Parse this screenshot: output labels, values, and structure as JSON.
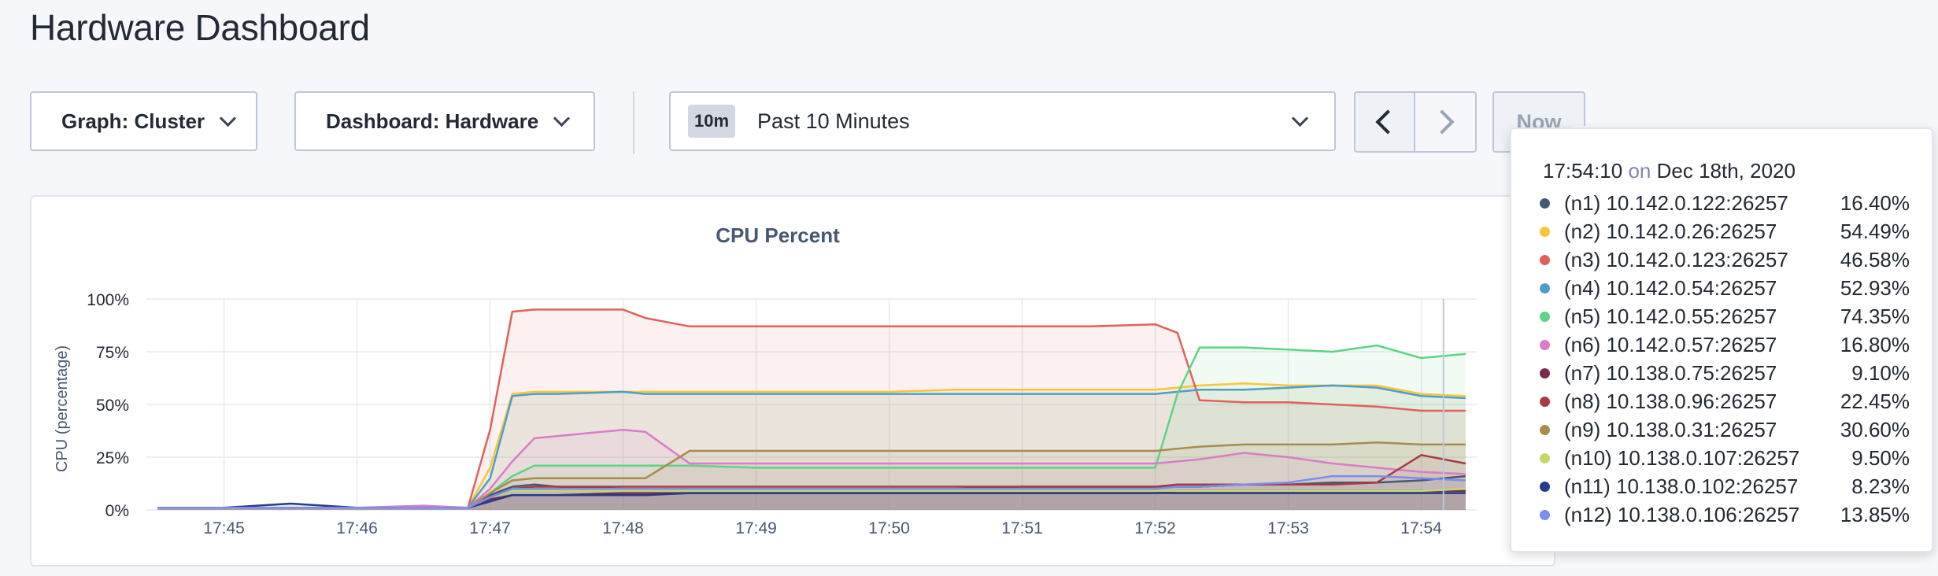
{
  "page": {
    "title": "Hardware Dashboard"
  },
  "toolbar": {
    "graph_label": "Graph: Cluster",
    "dashboard_label": "Dashboard: Hardware",
    "time_badge": "10m",
    "time_label": "Past 10 Minutes",
    "now_label": "Now"
  },
  "tooltip": {
    "time": "17:54:10",
    "on": "on",
    "date": "Dec 18th, 2020",
    "rows": [
      {
        "name": "(n1) 10.142.0.122:26257",
        "value": "16.40%",
        "color": "#475872"
      },
      {
        "name": "(n2) 10.142.0.26:26257",
        "value": "54.49%",
        "color": "#f5c73e"
      },
      {
        "name": "(n3) 10.142.0.123:26257",
        "value": "46.58%",
        "color": "#e0615a"
      },
      {
        "name": "(n4) 10.142.0.54:26257",
        "value": "52.93%",
        "color": "#4f9ec7"
      },
      {
        "name": "(n5) 10.142.0.55:26257",
        "value": "74.35%",
        "color": "#5fd385"
      },
      {
        "name": "(n6) 10.142.0.57:26257",
        "value": "16.80%",
        "color": "#d97cc9"
      },
      {
        "name": "(n7) 10.138.0.75:26257",
        "value": "9.10%",
        "color": "#7a2a4f"
      },
      {
        "name": "(n8) 10.138.0.96:26257",
        "value": "22.45%",
        "color": "#a83a46"
      },
      {
        "name": "(n9) 10.138.0.31:26257",
        "value": "30.60%",
        "color": "#a88c4e"
      },
      {
        "name": "(n10) 10.138.0.107:26257",
        "value": "9.50%",
        "color": "#c3d86a"
      },
      {
        "name": "(n11) 10.138.0.102:26257",
        "value": "8.23%",
        "color": "#273a8c"
      },
      {
        "name": "(n12) 10.138.0.106:26257",
        "value": "13.85%",
        "color": "#7b8ded"
      }
    ]
  },
  "chart_data": {
    "type": "line",
    "title": "CPU Percent",
    "ylabel": "CPU (percentage)",
    "xlabel": "",
    "x_ticks": [
      "17:45",
      "17:46",
      "17:47",
      "17:48",
      "17:49",
      "17:50",
      "17:51",
      "17:52",
      "17:53",
      "17:54"
    ],
    "y_ticks": [
      "0%",
      "25%",
      "50%",
      "75%",
      "100%"
    ],
    "xlim": [
      "17:44:25",
      "17:54:25"
    ],
    "ylim": [
      0,
      100
    ],
    "grid": true,
    "x": [
      "17:44:30",
      "17:45:00",
      "17:45:30",
      "17:46:00",
      "17:46:30",
      "17:46:50",
      "17:47:00",
      "17:47:10",
      "17:47:20",
      "17:47:30",
      "17:48:00",
      "17:48:10",
      "17:48:30",
      "17:49:00",
      "17:49:30",
      "17:50:00",
      "17:50:30",
      "17:51:00",
      "17:51:30",
      "17:52:00",
      "17:52:10",
      "17:52:20",
      "17:52:40",
      "17:53:00",
      "17:53:20",
      "17:53:40",
      "17:54:00",
      "17:54:20"
    ],
    "series": [
      {
        "name": "(n1) 10.142.0.122:26257",
        "color": "#475872",
        "values": [
          1,
          1,
          1,
          1,
          1,
          1,
          7,
          11,
          12,
          11,
          10,
          10,
          10,
          10,
          10,
          10,
          10,
          11,
          11,
          11,
          11,
          11,
          12,
          12,
          13,
          13,
          14,
          16
        ]
      },
      {
        "name": "(n2) 10.142.0.26:26257",
        "color": "#f5c73e",
        "values": [
          1,
          1,
          1,
          1,
          1,
          1,
          20,
          55,
          56,
          56,
          56,
          56,
          56,
          56,
          56,
          56,
          57,
          57,
          57,
          57,
          58,
          59,
          60,
          59,
          59,
          59,
          55,
          54
        ]
      },
      {
        "name": "(n3) 10.142.0.123:26257",
        "color": "#e0615a",
        "values": [
          1,
          1,
          1,
          1,
          1,
          1,
          38,
          94,
          95,
          95,
          95,
          91,
          87,
          87,
          87,
          87,
          87,
          87,
          87,
          88,
          84,
          52,
          51,
          51,
          50,
          49,
          47,
          47
        ]
      },
      {
        "name": "(n4) 10.142.0.54:26257",
        "color": "#4f9ec7",
        "values": [
          1,
          1,
          1,
          1,
          1,
          1,
          15,
          54,
          55,
          55,
          56,
          55,
          55,
          55,
          55,
          55,
          55,
          55,
          55,
          55,
          56,
          57,
          57,
          58,
          59,
          58,
          54,
          53
        ]
      },
      {
        "name": "(n5) 10.142.0.55:26257",
        "color": "#5fd385",
        "values": [
          1,
          1,
          1,
          1,
          1,
          1,
          8,
          16,
          21,
          21,
          21,
          21,
          21,
          20,
          20,
          20,
          20,
          20,
          20,
          20,
          55,
          77,
          77,
          76,
          75,
          78,
          72,
          74
        ]
      },
      {
        "name": "(n6) 10.142.0.57:26257",
        "color": "#d97cc9",
        "values": [
          1,
          1,
          1,
          1,
          2,
          1,
          10,
          23,
          34,
          35,
          38,
          37,
          22,
          22,
          22,
          22,
          22,
          22,
          22,
          22,
          23,
          24,
          27,
          25,
          22,
          20,
          18,
          17
        ]
      },
      {
        "name": "(n7) 10.138.0.75:26257",
        "color": "#7a2a4f",
        "values": [
          1,
          1,
          1,
          1,
          1,
          1,
          5,
          7,
          7,
          7,
          8,
          8,
          8,
          8,
          8,
          8,
          8,
          8,
          8,
          8,
          9,
          9,
          9,
          9,
          9,
          9,
          9,
          9
        ]
      },
      {
        "name": "(n8) 10.138.0.96:26257",
        "color": "#a83a46",
        "values": [
          1,
          1,
          1,
          1,
          1,
          1,
          6,
          10,
          11,
          11,
          11,
          11,
          11,
          11,
          11,
          11,
          11,
          11,
          11,
          11,
          12,
          12,
          12,
          12,
          12,
          13,
          26,
          22
        ]
      },
      {
        "name": "(n9) 10.138.0.31:26257",
        "color": "#a88c4e",
        "values": [
          1,
          1,
          1,
          1,
          1,
          1,
          8,
          14,
          15,
          15,
          15,
          15,
          28,
          28,
          28,
          28,
          28,
          28,
          28,
          28,
          29,
          30,
          31,
          31,
          31,
          32,
          31,
          31
        ]
      },
      {
        "name": "(n10) 10.138.0.107:26257",
        "color": "#c3d86a",
        "values": [
          1,
          1,
          1,
          1,
          1,
          1,
          6,
          9,
          9,
          9,
          9,
          9,
          9,
          9,
          9,
          9,
          9,
          9,
          9,
          9,
          9,
          9,
          9,
          9,
          9,
          9,
          9,
          10
        ]
      },
      {
        "name": "(n11) 10.138.0.102:26257",
        "color": "#273a8c",
        "values": [
          1,
          1,
          3,
          1,
          1,
          1,
          4,
          7,
          7,
          7,
          7,
          7,
          8,
          8,
          8,
          8,
          8,
          8,
          8,
          8,
          8,
          8,
          8,
          8,
          8,
          8,
          8,
          8
        ]
      },
      {
        "name": "(n12) 10.138.0.106:26257",
        "color": "#7b8ded",
        "values": [
          1,
          1,
          1,
          1,
          1,
          1,
          6,
          10,
          10,
          10,
          10,
          10,
          10,
          10,
          10,
          10,
          10,
          10,
          10,
          10,
          11,
          11,
          12,
          13,
          16,
          16,
          15,
          14
        ]
      }
    ]
  }
}
